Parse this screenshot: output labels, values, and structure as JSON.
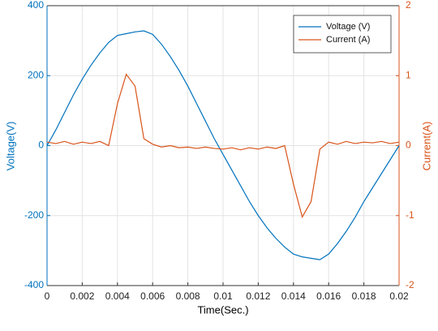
{
  "chart_data": {
    "type": "line",
    "x_label": "Time(Sec.)",
    "y_label": "Voltage(V)",
    "y2_label": "Current(A)",
    "x": [
      0,
      0.0005,
      0.001,
      0.0015,
      0.002,
      0.0025,
      0.003,
      0.0035,
      0.004,
      0.0045,
      0.005,
      0.0055,
      0.006,
      0.0065,
      0.007,
      0.0075,
      0.008,
      0.0085,
      0.009,
      0.0095,
      0.01,
      0.0105,
      0.011,
      0.0115,
      0.012,
      0.0125,
      0.013,
      0.0135,
      0.014,
      0.0145,
      0.015,
      0.0155,
      0.016,
      0.0165,
      0.017,
      0.0175,
      0.018,
      0.0185,
      0.019,
      0.0195,
      0.02
    ],
    "series": [
      {
        "name": "Voltage (V)",
        "color": "#0072BD",
        "axis": "y",
        "values": [
          0,
          45,
          95,
          145,
          190,
          230,
          265,
          295,
          315,
          320,
          325,
          328,
          318,
          290,
          255,
          215,
          170,
          120,
          70,
          20,
          -25,
          -70,
          -115,
          -160,
          -200,
          -235,
          -265,
          -290,
          -310,
          -318,
          -322,
          -326,
          -310,
          -280,
          -245,
          -205,
          -160,
          -120,
          -80,
          -40,
          0
        ]
      },
      {
        "name": "Current (A)",
        "color": "#D95319",
        "axis": "y2",
        "values": [
          0.05,
          0.03,
          0.06,
          0.02,
          0.05,
          0.03,
          0.06,
          0.0,
          0.6,
          1.02,
          0.85,
          0.1,
          0.02,
          -0.02,
          0.0,
          -0.03,
          -0.02,
          -0.04,
          -0.02,
          -0.04,
          -0.05,
          -0.03,
          -0.06,
          -0.03,
          -0.05,
          -0.02,
          -0.04,
          0.0,
          -0.55,
          -1.02,
          -0.8,
          -0.05,
          0.05,
          0.02,
          0.06,
          0.03,
          0.05,
          0.04,
          0.06,
          0.03,
          0.05
        ]
      }
    ],
    "xlim": [
      0,
      0.02
    ],
    "xticks": [
      0,
      0.002,
      0.004,
      0.006,
      0.008,
      0.01,
      0.012,
      0.014,
      0.016,
      0.018,
      0.02
    ],
    "ylim": [
      -400,
      400
    ],
    "yticks": [
      -400,
      -200,
      0,
      200,
      400
    ],
    "y2lim": [
      -2,
      2
    ],
    "y2ticks": [
      -2,
      -1,
      0,
      1,
      2
    ],
    "grid": true,
    "legend": "upper right"
  }
}
